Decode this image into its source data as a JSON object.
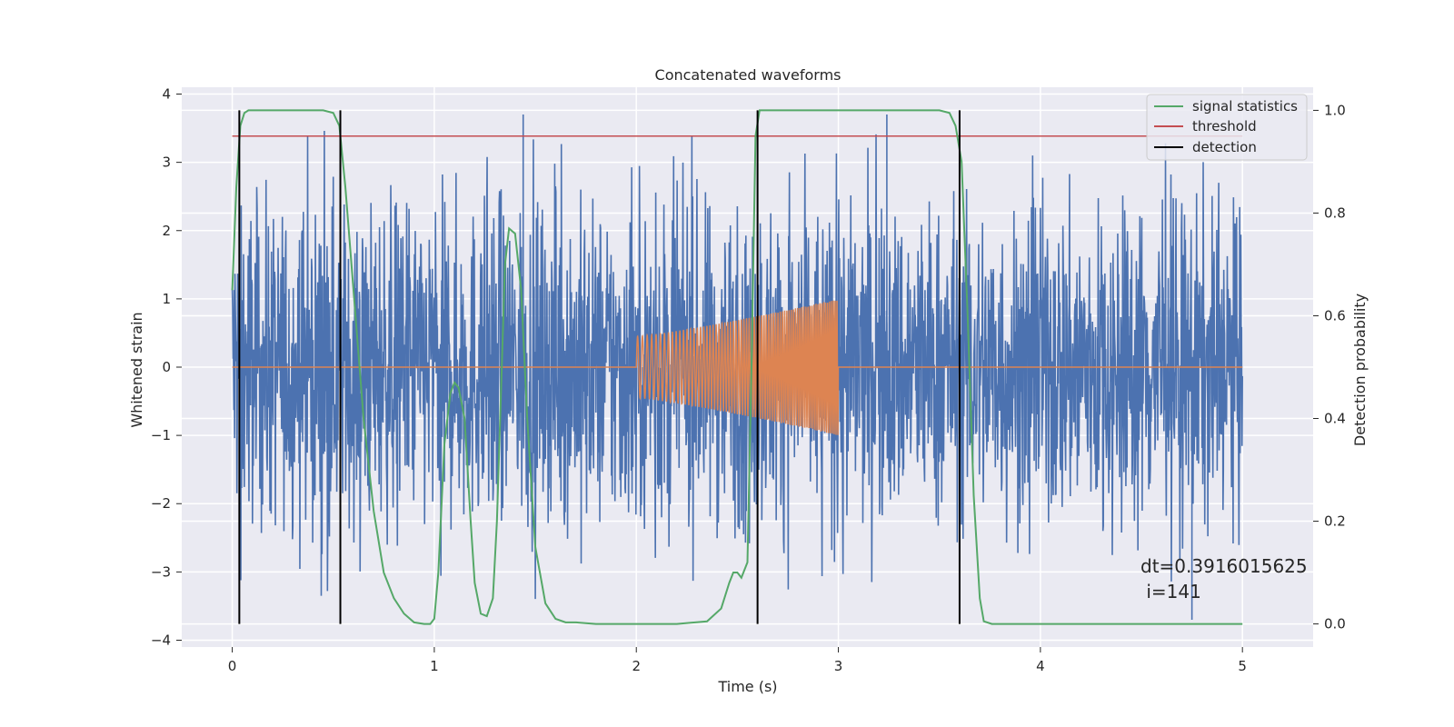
{
  "chart_data": {
    "type": "line",
    "title": "Concatenated waveforms",
    "xlabel": "Time (s)",
    "ylabel": "Whitened strain",
    "y2label": "Detection probability",
    "xlim": [
      -0.25,
      5.35
    ],
    "ylim": [
      -4.1,
      4.1
    ],
    "y2lim": [
      -0.045,
      1.045
    ],
    "x_ticks": [
      "0",
      "1",
      "2",
      "3",
      "4",
      "5"
    ],
    "y_ticks": [
      "−4",
      "−3",
      "−2",
      "−1",
      "0",
      "1",
      "2",
      "3",
      "4"
    ],
    "y2_ticks": [
      "0.0",
      "0.2",
      "0.4",
      "0.6",
      "0.8",
      "1.0"
    ],
    "grid": true,
    "legend_position": "top-right",
    "colors": {
      "strain": "#4c72b0",
      "injection": "#dd8452",
      "signal": "#55a868",
      "threshold": "#c44e52",
      "detection": "#000000",
      "background": "#eaeaf2",
      "grid": "#ffffff"
    },
    "series": [
      {
        "name": "signal statistics",
        "axis": "right",
        "x": [
          0.0,
          0.02,
          0.04,
          0.06,
          0.08,
          0.1,
          0.15,
          0.2,
          0.3,
          0.4,
          0.45,
          0.5,
          0.53,
          0.56,
          0.6,
          0.65,
          0.7,
          0.75,
          0.8,
          0.85,
          0.9,
          0.95,
          0.98,
          1.0,
          1.02,
          1.05,
          1.08,
          1.1,
          1.12,
          1.15,
          1.18,
          1.2,
          1.23,
          1.26,
          1.29,
          1.31,
          1.33,
          1.35,
          1.37,
          1.4,
          1.43,
          1.46,
          1.5,
          1.55,
          1.6,
          1.65,
          1.7,
          1.8,
          2.0,
          2.2,
          2.35,
          2.42,
          2.46,
          2.48,
          2.5,
          2.52,
          2.55,
          2.57,
          2.59,
          2.61,
          2.64,
          2.68,
          2.75,
          2.9,
          3.2,
          3.5,
          3.55,
          3.58,
          3.61,
          3.64,
          3.67,
          3.7,
          3.72,
          3.76,
          3.8,
          4.0,
          4.5,
          5.0
        ],
        "values": [
          0.65,
          0.85,
          0.97,
          0.995,
          1.0,
          1.0,
          1.0,
          1.0,
          1.0,
          1.0,
          1.0,
          0.995,
          0.97,
          0.85,
          0.65,
          0.4,
          0.22,
          0.1,
          0.05,
          0.02,
          0.003,
          0.0,
          0.0,
          0.01,
          0.1,
          0.35,
          0.45,
          0.47,
          0.46,
          0.4,
          0.2,
          0.08,
          0.02,
          0.015,
          0.05,
          0.2,
          0.45,
          0.7,
          0.77,
          0.76,
          0.65,
          0.4,
          0.15,
          0.04,
          0.01,
          0.003,
          0.003,
          0.0,
          0.0,
          0.0,
          0.005,
          0.03,
          0.08,
          0.1,
          0.1,
          0.09,
          0.12,
          0.5,
          0.95,
          1.0,
          1.0,
          1.0,
          1.0,
          1.0,
          1.0,
          1.0,
          0.995,
          0.97,
          0.9,
          0.6,
          0.25,
          0.05,
          0.005,
          0.0,
          0.0,
          0.0,
          0.0,
          0.0
        ]
      },
      {
        "name": "threshold",
        "axis": "right",
        "x": [
          0.0,
          5.0
        ],
        "values": [
          0.95,
          0.95
        ]
      },
      {
        "name": "detection",
        "axis": "right",
        "x": [
          0.035,
          0.535,
          2.6,
          3.6
        ],
        "values": [
          1.0,
          1.0,
          1.0,
          1.0
        ]
      }
    ],
    "strain": {
      "x_start": 0.0,
      "x_end": 5.0,
      "typical_amplitude": 1.6,
      "peak_high": 3.7,
      "peak_low": -3.7
    },
    "injection": {
      "x_start": 2.0,
      "x_end": 3.0,
      "amplitude_start": 0.45,
      "amplitude_end": 1.0,
      "baseline": 0.0
    },
    "annotation": [
      "dt=0.3916015625",
      " i=141"
    ]
  }
}
